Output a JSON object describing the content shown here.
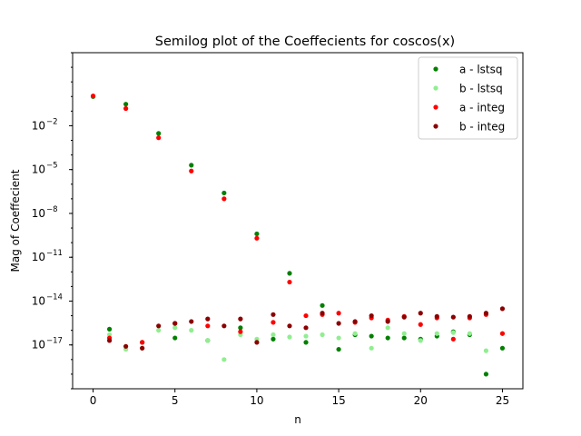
{
  "chart_data": {
    "type": "scatter",
    "title": "Semilog plot of the Coeffecients for coscos(x)",
    "xlabel": "n",
    "ylabel": "Mag of Coeffecient",
    "yscale": "log",
    "xlim": [
      -1.25,
      26.25
    ],
    "ylim": [
      1e-20,
      1000.0
    ],
    "x_ticks": [
      0,
      5,
      10,
      15,
      20,
      25
    ],
    "y_ticks": [
      {
        "value": 1e-17,
        "label": "10",
        "exp": "−17"
      },
      {
        "value": 1e-14,
        "label": "10",
        "exp": "−14"
      },
      {
        "value": 1e-11,
        "label": "10",
        "exp": "−11"
      },
      {
        "value": 1e-08,
        "label": "10",
        "exp": "−8"
      },
      {
        "value": 1e-05,
        "label": "10",
        "exp": "−5"
      },
      {
        "value": 0.01,
        "label": "10",
        "exp": "−2"
      }
    ],
    "grid": false,
    "legend_position": "top-right",
    "series": [
      {
        "name": "a - lstsq",
        "color": "#008000",
        "x": [
          0,
          1,
          2,
          3,
          4,
          5,
          6,
          7,
          8,
          9,
          10,
          11,
          12,
          13,
          14,
          15,
          16,
          17,
          18,
          19,
          20,
          21,
          22,
          23,
          24,
          25
        ],
        "y": [
          1.0,
          1.2e-16,
          0.3,
          1.5e-17,
          0.003,
          3e-17,
          2e-05,
          2e-17,
          2.5e-07,
          1.5e-16,
          4e-10,
          2.5e-17,
          8e-13,
          1.5e-17,
          5e-15,
          5e-18,
          5e-17,
          4e-17,
          3e-17,
          3e-17,
          2.5e-17,
          4e-17,
          8e-17,
          5e-17,
          1e-19,
          6e-18
        ]
      },
      {
        "name": "b - lstsq",
        "color": "#90ee90",
        "x": [
          1,
          2,
          3,
          4,
          5,
          6,
          7,
          8,
          9,
          10,
          11,
          12,
          13,
          14,
          15,
          16,
          17,
          18,
          19,
          20,
          21,
          22,
          23,
          24,
          25
        ],
        "y": [
          5e-17,
          5e-18,
          6e-18,
          1e-16,
          1.5e-16,
          1e-16,
          2e-17,
          1e-18,
          5e-17,
          2.5e-17,
          5e-17,
          3.5e-17,
          4e-17,
          5e-17,
          3e-17,
          6e-17,
          6e-18,
          1.5e-16,
          6e-17,
          2e-17,
          6e-17,
          7e-17,
          6e-17,
          4e-18,
          6e-17
        ]
      },
      {
        "name": "a - integ",
        "color": "#ff0000",
        "x": [
          0,
          1,
          2,
          3,
          4,
          5,
          6,
          7,
          8,
          9,
          10,
          11,
          12,
          13,
          14,
          15,
          16,
          17,
          18,
          19,
          20,
          21,
          22,
          23,
          24,
          25
        ],
        "y": [
          1.1,
          3e-17,
          0.15,
          1.5e-17,
          0.0015,
          3e-16,
          8e-06,
          2e-16,
          1e-07,
          8e-17,
          2e-10,
          3.5e-16,
          2e-13,
          1e-15,
          1.2e-15,
          1.5e-15,
          3.5e-16,
          7e-16,
          5e-16,
          9e-16,
          2.5e-16,
          7e-16,
          2.5e-17,
          7e-16,
          1.2e-15,
          6e-17
        ]
      },
      {
        "name": "b - integ",
        "color": "#8b0000",
        "x": [
          1,
          2,
          3,
          4,
          5,
          6,
          7,
          8,
          9,
          10,
          11,
          12,
          13,
          14,
          15,
          16,
          17,
          18,
          19,
          20,
          21,
          22,
          23,
          24,
          25
        ],
        "y": [
          2e-17,
          8e-18,
          6e-18,
          2e-16,
          3e-16,
          4e-16,
          6e-16,
          2e-16,
          6e-16,
          1.5e-17,
          1.2e-15,
          2e-16,
          1.5e-16,
          1.5e-15,
          3e-16,
          4e-16,
          1e-15,
          4e-16,
          8e-16,
          1.5e-15,
          9e-16,
          8e-16,
          9e-16,
          1.5e-15,
          3e-15
        ]
      }
    ]
  }
}
